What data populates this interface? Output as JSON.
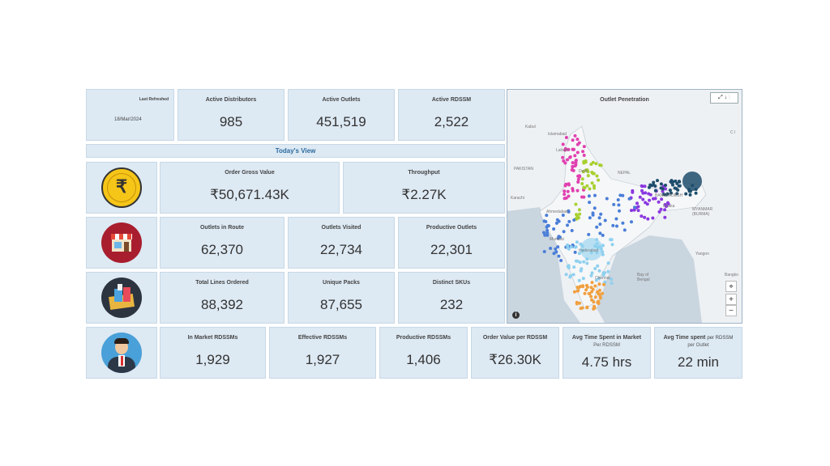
{
  "last_refreshed": {
    "label": "Last Refreshed",
    "date": "18/Mar/2024"
  },
  "top_kpis": [
    {
      "label": "Active Distributors",
      "value": "985"
    },
    {
      "label": "Active Outlets",
      "value": "451,519"
    },
    {
      "label": "Active RDSSM",
      "value": "2,522"
    }
  ],
  "todays_view": "Today's View",
  "row_order": [
    {
      "label": "Order Gross Value",
      "value": "₹50,671.43K"
    },
    {
      "label": "Throughput",
      "value": "₹2.27K"
    }
  ],
  "row_outlets": [
    {
      "label": "Outlets in Route",
      "value": "62,370"
    },
    {
      "label": "Outlets Visited",
      "value": "22,734"
    },
    {
      "label": "Productive Outlets",
      "value": "22,301"
    }
  ],
  "row_lines": [
    {
      "label": "Total Lines Ordered",
      "value": "88,392"
    },
    {
      "label": "Unique Packs",
      "value": "87,655"
    },
    {
      "label": "Distinct SKUs",
      "value": "232"
    }
  ],
  "row_rdssm": [
    {
      "label": "In Market RDSSMs",
      "value": "1,929"
    },
    {
      "label": "Effective RDSSMs",
      "value": "1,927"
    },
    {
      "label": "Productive RDSSMs",
      "value": "1,406"
    },
    {
      "label": "Order Value per RDSSM",
      "value": "₹26.30K"
    },
    {
      "label": "Avg Time Spent in Market",
      "sub": "Per RDSSM",
      "value": "4.75 hrs"
    },
    {
      "label": "Avg Time spent",
      "label_suffix": "per RDSSM",
      "sub": "per Outlet",
      "value": "22 min"
    }
  ],
  "map": {
    "title": "Outlet Penetration",
    "tools": "⤢ ↓ ⋮",
    "labels": {
      "kabul": "Kabul",
      "islamabad": "Islamabad",
      "lahore": "Lahore",
      "pakistan": "PAKISTAN",
      "nepal": "NEPAL",
      "delhi": "Delhi",
      "dhaka": "Dhaka",
      "myanmar": "MYANMAR (BURMA)",
      "ahmedabad": "Ahmedabad",
      "karachi": "Karachi",
      "mumbai": "Mumbai",
      "hyderabad": "Hyderabad",
      "chennai": "Chennai",
      "bay": "Bay of Bengal",
      "yangon": "Yangon",
      "bangkok": "Bangko",
      "bangladesh": "BANGLADESH",
      "ci": "C I"
    },
    "zoom_in": "+",
    "zoom_out": "−",
    "locate": "⌖",
    "info": "i",
    "colors": {
      "north": "#e040b0",
      "central": "#a8d030",
      "east": "#8a38e0",
      "northeast": "#1e4e6c",
      "west": "#4a7ed8",
      "south": "#8fd0ef",
      "tamil": "#f0a040"
    }
  },
  "colors": {
    "card_bg": "#dde9f3",
    "accent": "#2b6a9f"
  }
}
